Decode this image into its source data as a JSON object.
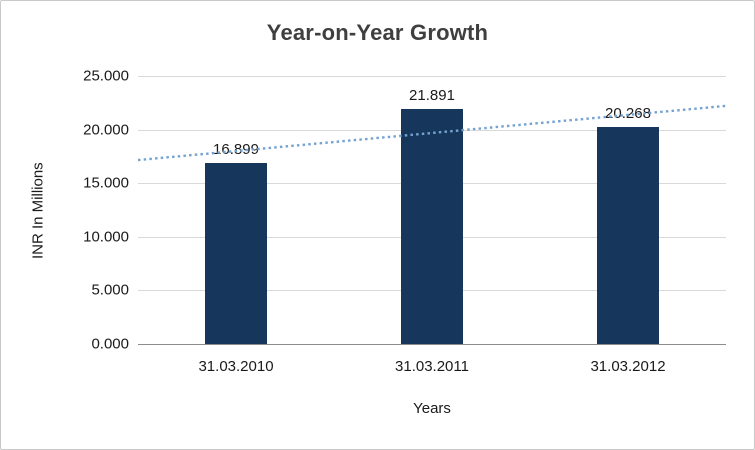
{
  "chart_data": {
    "type": "bar",
    "title": "Year-on-Year Growth",
    "categories": [
      "31.03.2010",
      "31.03.2011",
      "31.03.2012"
    ],
    "values": [
      16.899,
      21.891,
      20.268
    ],
    "data_labels": [
      "16.899",
      "21.891",
      "20.268"
    ],
    "xlabel": "Years",
    "ylabel": "INR In Millions",
    "ylim": [
      0,
      25
    ],
    "ytick_step": 5,
    "ytick_labels": [
      "0.000",
      "5.000",
      "10.000",
      "15.000",
      "20.000",
      "25.000"
    ],
    "grid": true,
    "legend": "none",
    "bar_color": "#16365c",
    "trendline": {
      "type": "linear",
      "style": "dotted",
      "color": "#75a3d1"
    },
    "colors": {
      "title": "#3f3f3f",
      "axis_text": "#1a1a1a",
      "gridline": "#d9d9d9",
      "axis_line": "#8c8c8c",
      "border": "#c9c9c9",
      "background": "#ffffff"
    }
  }
}
